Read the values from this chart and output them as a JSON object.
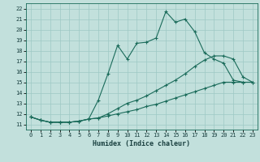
{
  "xlabel": "Humidex (Indice chaleur)",
  "bg_color": "#c2e0dc",
  "grid_color": "#9dc8c4",
  "line_color": "#1a6b5a",
  "xlim": [
    -0.5,
    23.5
  ],
  "ylim": [
    10.5,
    22.5
  ],
  "xticks": [
    0,
    1,
    2,
    3,
    4,
    5,
    6,
    7,
    8,
    9,
    10,
    11,
    12,
    13,
    14,
    15,
    16,
    17,
    18,
    19,
    20,
    21,
    22,
    23
  ],
  "yticks": [
    11,
    12,
    13,
    14,
    15,
    16,
    17,
    18,
    19,
    20,
    21,
    22
  ],
  "line1_x": [
    0,
    1,
    2,
    3,
    4,
    5,
    6,
    7,
    8,
    9,
    10,
    11,
    12,
    13,
    14,
    15,
    16,
    17,
    18,
    19,
    20,
    21,
    22
  ],
  "line1_y": [
    11.7,
    11.4,
    11.2,
    11.2,
    11.2,
    11.3,
    11.5,
    13.3,
    15.8,
    18.5,
    17.2,
    18.7,
    18.8,
    19.2,
    21.7,
    20.7,
    21.0,
    19.8,
    17.8,
    17.2,
    16.8,
    15.2,
    15.0
  ],
  "line2_x": [
    0,
    1,
    2,
    3,
    4,
    5,
    6,
    7,
    8,
    9,
    10,
    11,
    12,
    13,
    14,
    15,
    16,
    17,
    18,
    19,
    20,
    21,
    22,
    23
  ],
  "line2_y": [
    11.7,
    11.4,
    11.2,
    11.2,
    11.2,
    11.3,
    11.5,
    11.6,
    12.0,
    12.5,
    13.0,
    13.3,
    13.7,
    14.2,
    14.7,
    15.2,
    15.8,
    16.5,
    17.1,
    17.5,
    17.5,
    17.2,
    15.5,
    15.0
  ],
  "line3_x": [
    0,
    1,
    2,
    3,
    4,
    5,
    6,
    7,
    8,
    9,
    10,
    11,
    12,
    13,
    14,
    15,
    16,
    17,
    18,
    19,
    20,
    21,
    22,
    23
  ],
  "line3_y": [
    11.7,
    11.4,
    11.2,
    11.2,
    11.2,
    11.3,
    11.5,
    11.6,
    11.8,
    12.0,
    12.2,
    12.4,
    12.7,
    12.9,
    13.2,
    13.5,
    13.8,
    14.1,
    14.4,
    14.7,
    15.0,
    15.0,
    15.0,
    15.0
  ]
}
